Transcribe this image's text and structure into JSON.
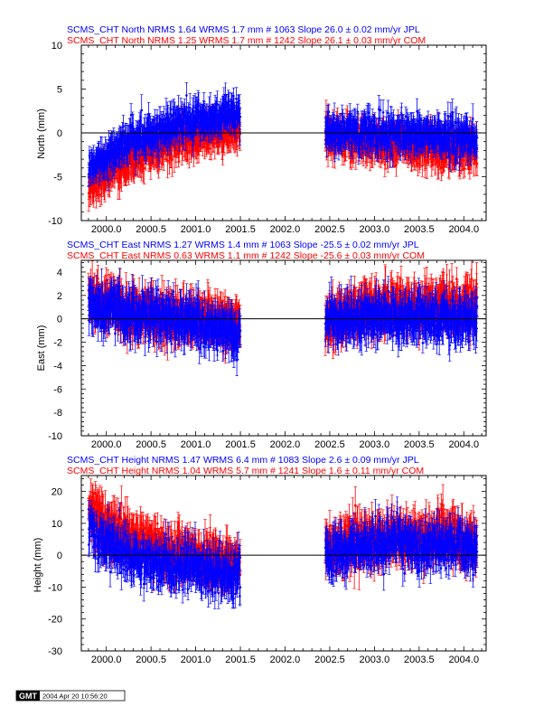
{
  "chart_data": [
    {
      "type": "scatter",
      "component": "North",
      "ylabel": "North (mm)",
      "ylim": [
        -10,
        10
      ],
      "xlim": [
        1999.72,
        2004.25
      ],
      "xticks": [
        2000.0,
        2000.5,
        2001.0,
        2001.5,
        2002.0,
        2002.5,
        2003.0,
        2003.5,
        2004.0
      ],
      "yticks": [
        -10,
        -5,
        0,
        5,
        10
      ],
      "zero_line": true,
      "series": [
        {
          "header": "SCMS_CHT North NRMS 1.64 WRMS  1.7 mm # 1063 Slope   26.0 ±  0.02 mm/yr JPL",
          "color": "#0000ff",
          "segments": [
            {
              "x": [
                1999.8,
                2000.0,
                2000.25,
                2000.5,
                2000.75,
                2001.0,
                2001.25,
                2001.5
              ],
              "y": [
                -4.5,
                -2.5,
                -1.0,
                0.0,
                0.8,
                1.5,
                1.8,
                2.0
              ],
              "err": 1.3,
              "scatter": 1.5
            },
            {
              "x": [
                2002.45,
                2002.75,
                2003.0,
                2003.25,
                2003.5,
                2003.75,
                2004.0,
                2004.15
              ],
              "y": [
                0.2,
                0.0,
                0.0,
                -0.2,
                0.0,
                -0.5,
                -0.5,
                -0.8
              ],
              "err": 1.3,
              "scatter": 1.6
            }
          ]
        },
        {
          "header": "SCMS_CHT North NRMS 1.25 WRMS  1.7 mm # 1242 Slope   26.1 ±  0.03 mm/yr COM",
          "color": "#ff0000",
          "segments": [
            {
              "x": [
                1999.8,
                2000.0,
                2000.25,
                2000.5,
                2000.75,
                2001.0,
                2001.25,
                2001.5
              ],
              "y": [
                -6.0,
                -4.5,
                -3.0,
                -2.0,
                -1.2,
                -0.5,
                0.0,
                0.3
              ],
              "err": 1.5,
              "scatter": 1.4
            },
            {
              "x": [
                2002.45,
                2002.75,
                2003.0,
                2003.25,
                2003.5,
                2003.75,
                2004.0,
                2004.15
              ],
              "y": [
                -0.5,
                -0.8,
                -1.0,
                -1.2,
                -1.5,
                -1.8,
                -2.0,
                -2.0
              ],
              "err": 1.5,
              "scatter": 1.5
            }
          ]
        }
      ]
    },
    {
      "type": "scatter",
      "component": "East",
      "ylabel": "East (mm)",
      "ylim": [
        -10,
        5
      ],
      "xlim": [
        1999.72,
        2004.25
      ],
      "xticks": [
        2000.0,
        2000.5,
        2001.0,
        2001.5,
        2002.0,
        2002.5,
        2003.0,
        2003.5,
        2004.0
      ],
      "yticks": [
        -10,
        -8,
        -6,
        -4,
        -2,
        0,
        2,
        4
      ],
      "zero_line": true,
      "series": [
        {
          "header": "SCMS_CHT East NRMS 1.27 WRMS  1.4 mm # 1063 Slope  -25.5 ±  0.02 mm/yr JPL",
          "color": "#0000ff",
          "segments": [
            {
              "x": [
                1999.8,
                2000.0,
                2000.25,
                2000.5,
                2000.75,
                2001.0,
                2001.25,
                2001.5
              ],
              "y": [
                1.0,
                0.8,
                0.5,
                0.2,
                0.0,
                -0.3,
                -0.8,
                -1.5
              ],
              "err": 1.2,
              "scatter": 1.4
            },
            {
              "x": [
                2002.45,
                2002.75,
                2003.0,
                2003.25,
                2003.5,
                2003.75,
                2004.0,
                2004.15
              ],
              "y": [
                0.0,
                0.0,
                0.2,
                0.0,
                0.0,
                0.0,
                0.0,
                0.0
              ],
              "err": 1.2,
              "scatter": 1.3
            }
          ]
        },
        {
          "header": "SCMS_CHT East NRMS 0.63 WRMS  1.1 mm # 1242 Slope  -25.6 ±  0.03 mm/yr COM",
          "color": "#ff0000",
          "segments": [
            {
              "x": [
                1999.8,
                2000.0,
                2000.25,
                2000.5,
                2000.75,
                2001.0,
                2001.25,
                2001.5
              ],
              "y": [
                1.5,
                1.2,
                0.8,
                0.5,
                0.2,
                0.0,
                -0.3,
                -0.8
              ],
              "err": 1.4,
              "scatter": 1.2
            },
            {
              "x": [
                2002.45,
                2002.75,
                2003.0,
                2003.25,
                2003.5,
                2003.75,
                2004.0,
                2004.15
              ],
              "y": [
                0.0,
                0.5,
                1.0,
                1.0,
                1.0,
                1.5,
                1.2,
                1.0
              ],
              "err": 1.4,
              "scatter": 1.3
            }
          ]
        }
      ]
    },
    {
      "type": "scatter",
      "component": "Height",
      "ylabel": "Height (mm)",
      "ylim": [
        -30,
        25
      ],
      "xlim": [
        1999.72,
        2004.25
      ],
      "xticks": [
        2000.0,
        2000.5,
        2001.0,
        2001.5,
        2002.0,
        2002.5,
        2003.0,
        2003.5,
        2004.0
      ],
      "yticks": [
        -30,
        -20,
        -10,
        0,
        10,
        20
      ],
      "zero_line": true,
      "series": [
        {
          "header": "SCMS_CHT Height NRMS 1.47 WRMS  6.4 mm # 1083 Slope    2.6 ±  0.09 mm/yr JPL",
          "color": "#0000ff",
          "segments": [
            {
              "x": [
                1999.8,
                2000.0,
                2000.25,
                2000.5,
                2000.75,
                2001.0,
                2001.25,
                2001.5
              ],
              "y": [
                10.0,
                4.0,
                0.0,
                -2.0,
                -3.0,
                -4.0,
                -5.0,
                -6.0
              ],
              "err": 4.0,
              "scatter": 5.5
            },
            {
              "x": [
                2002.45,
                2002.75,
                2003.0,
                2003.25,
                2003.5,
                2003.75,
                2004.0,
                2004.15
              ],
              "y": [
                0.0,
                2.0,
                3.0,
                4.0,
                2.0,
                3.0,
                2.0,
                0.0
              ],
              "err": 4.0,
              "scatter": 5.5
            }
          ]
        },
        {
          "header": "SCMS_CHT Height NRMS 1.04 WRMS  5.7 mm # 1241 Slope    1.6 ±  0.11 mm/yr COM",
          "color": "#ff0000",
          "segments": [
            {
              "x": [
                1999.8,
                2000.0,
                2000.25,
                2000.5,
                2000.75,
                2001.0,
                2001.25,
                2001.5
              ],
              "y": [
                14.0,
                9.0,
                6.0,
                3.0,
                1.0,
                0.0,
                -2.0,
                -3.0
              ],
              "err": 5.0,
              "scatter": 5.0
            },
            {
              "x": [
                2002.45,
                2002.75,
                2003.0,
                2003.25,
                2003.5,
                2003.75,
                2004.0,
                2004.15
              ],
              "y": [
                2.0,
                4.0,
                5.0,
                6.0,
                5.0,
                6.0,
                5.0,
                3.0
              ],
              "err": 5.0,
              "scatter": 5.0
            }
          ]
        }
      ]
    }
  ],
  "footer": {
    "logo_text": "GMT",
    "timestamp": "2004 Apr 20 10:56:20"
  }
}
